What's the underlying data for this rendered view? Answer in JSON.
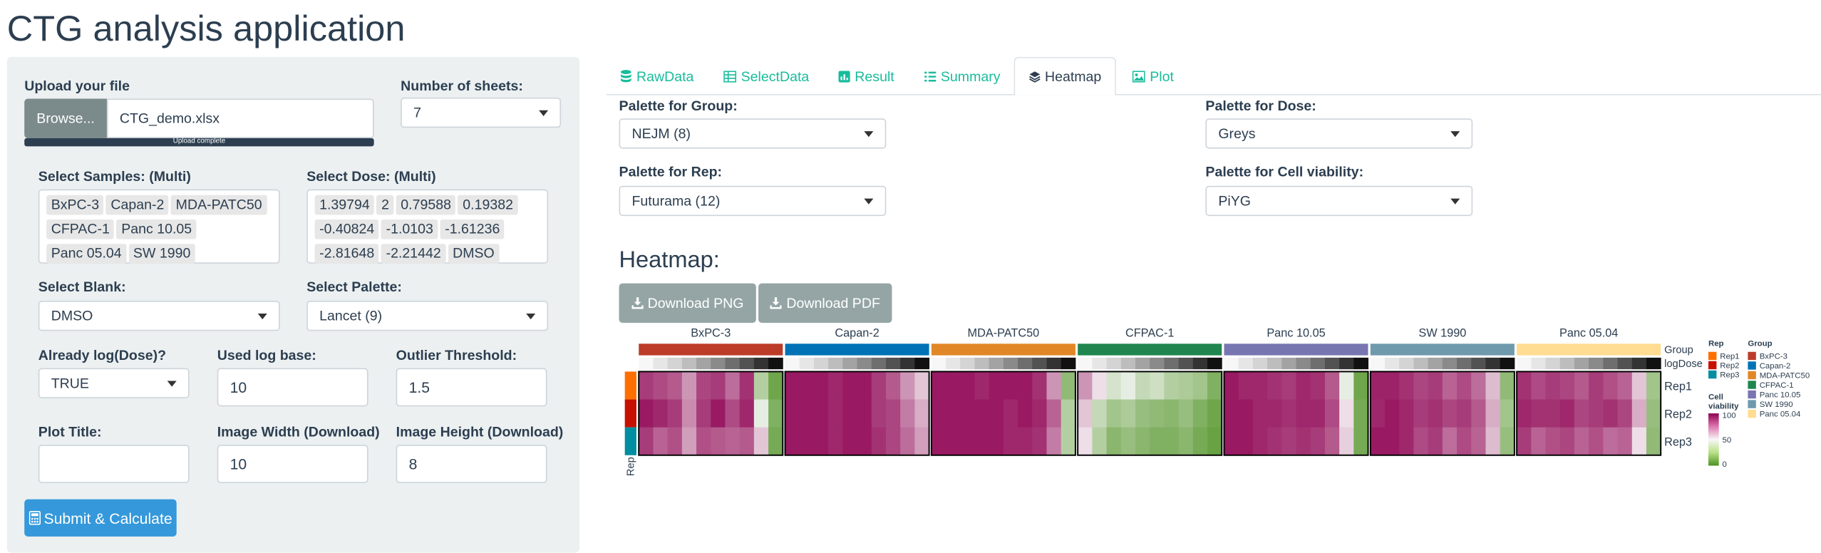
{
  "app_title": "CTG analysis application",
  "sidebar": {
    "upload_label": "Upload your file",
    "browse_label": "Browse...",
    "file_name": "CTG_demo.xlsx",
    "upload_status": "Upload complete",
    "sheets_label": "Number of sheets:",
    "sheets_value": "7",
    "samples_label": "Select Samples: (Multi)",
    "samples": [
      "BxPC-3",
      "Capan-2",
      "MDA-PATC50",
      "CFPAC-1",
      "Panc 10.05",
      "Panc 05.04",
      "SW 1990"
    ],
    "dose_label": "Select Dose: (Multi)",
    "doses": [
      "1.39794",
      "2",
      "0.79588",
      "0.19382",
      "-0.40824",
      "-1.0103",
      "-1.61236",
      "-2.81648",
      "-2.21442",
      "DMSO"
    ],
    "blank_label": "Select Blank:",
    "blank_value": "DMSO",
    "palette_label": "Select Palette:",
    "palette_value": "Lancet (9)",
    "logdose_label": "Already log(Dose)?",
    "logdose_value": "TRUE",
    "logbase_label": "Used log base:",
    "logbase_value": "10",
    "outlier_label": "Outlier Threshold:",
    "outlier_value": "1.5",
    "plottitle_label": "Plot Title:",
    "plottitle_value": "",
    "imgw_label": "Image Width (Download)",
    "imgw_value": "10",
    "imgh_label": "Image Height (Download)",
    "imgh_value": "8",
    "submit_label": "Submit & Calculate"
  },
  "tabs": [
    {
      "label": "RawData",
      "icon": "database-icon"
    },
    {
      "label": "SelectData",
      "icon": "table-icon"
    },
    {
      "label": "Result",
      "icon": "chart-icon"
    },
    {
      "label": "Summary",
      "icon": "list-icon"
    },
    {
      "label": "Heatmap",
      "icon": "layers-icon"
    },
    {
      "label": "Plot",
      "icon": "image-icon"
    }
  ],
  "heatmap_tab": {
    "pal_group_label": "Palette for Group:",
    "pal_group_value": "NEJM (8)",
    "pal_dose_label": "Palette for Dose:",
    "pal_dose_value": "Greys",
    "pal_rep_label": "Palette for Rep:",
    "pal_rep_value": "Futurama (12)",
    "pal_cv_label": "Palette for Cell viability:",
    "pal_cv_value": "PiYG",
    "heading": "Heatmap:",
    "download_png": "Download PNG",
    "download_pdf": "Download PDF"
  },
  "chart_data": {
    "type": "heatmap",
    "groups": [
      "BxPC-3",
      "Capan-2",
      "MDA-PATC50",
      "CFPAC-1",
      "Panc 10.05",
      "SW 1990",
      "Panc 05.04"
    ],
    "group_colors": [
      "#bc3c29",
      "#0072b5",
      "#e18727",
      "#20854e",
      "#7876b1",
      "#6f99ad",
      "#ffdc91"
    ],
    "rows": [
      "Rep1",
      "Rep2",
      "Rep3"
    ],
    "rep_colors": [
      "#ff6f00",
      "#c71000",
      "#008ea0"
    ],
    "annotation_labels": [
      "Group",
      "logDose"
    ],
    "row_annotation_label": "Rep",
    "legend_rep_title": "Rep",
    "legend_group_title": "Group",
    "legend_cv_title": "Cell viability",
    "legend_cv_ticks": [
      "100",
      "50",
      "0"
    ],
    "cv_range": [
      0,
      100
    ],
    "values": [
      [
        88,
        85,
        82,
        70,
        86,
        88,
        78,
        90,
        30,
        10,
        95,
        95,
        95,
        92,
        95,
        95,
        88,
        82,
        70,
        60,
        95,
        95,
        95,
        92,
        95,
        95,
        95,
        90,
        70,
        20,
        70,
        55,
        40,
        45,
        35,
        38,
        30,
        28,
        25,
        15,
        95,
        92,
        92,
        90,
        88,
        92,
        90,
        82,
        45,
        10,
        93,
        93,
        90,
        86,
        88,
        80,
        85,
        78,
        62,
        20,
        90,
        85,
        88,
        86,
        82,
        88,
        84,
        80,
        60,
        25
      ],
      [
        95,
        92,
        88,
        72,
        88,
        95,
        85,
        92,
        45,
        15,
        95,
        95,
        95,
        92,
        95,
        95,
        88,
        86,
        75,
        65,
        95,
        95,
        95,
        95,
        95,
        92,
        95,
        92,
        80,
        30,
        60,
        35,
        25,
        28,
        22,
        20,
        18,
        22,
        15,
        10,
        95,
        95,
        92,
        92,
        90,
        92,
        92,
        85,
        55,
        12,
        92,
        95,
        92,
        88,
        90,
        86,
        88,
        82,
        65,
        25,
        92,
        90,
        90,
        92,
        86,
        88,
        90,
        86,
        65,
        22
      ],
      [
        88,
        80,
        84,
        68,
        84,
        82,
        80,
        82,
        60,
        12,
        95,
        95,
        95,
        92,
        95,
        95,
        90,
        86,
        78,
        68,
        95,
        95,
        95,
        95,
        95,
        92,
        92,
        90,
        75,
        30,
        55,
        30,
        18,
        22,
        18,
        15,
        15,
        18,
        12,
        8,
        95,
        95,
        92,
        90,
        88,
        90,
        88,
        82,
        58,
        12,
        95,
        95,
        92,
        85,
        88,
        78,
        85,
        80,
        62,
        22,
        88,
        80,
        84,
        86,
        80,
        84,
        78,
        80,
        55,
        20
      ]
    ]
  }
}
